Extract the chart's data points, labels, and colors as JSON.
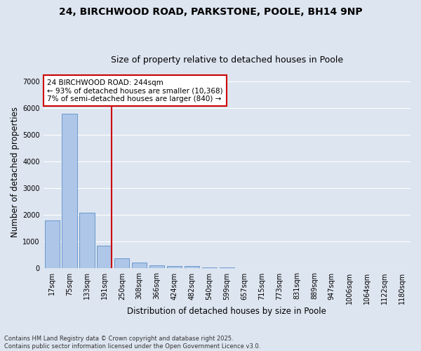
{
  "title_line1": "24, BIRCHWOOD ROAD, PARKSTONE, POOLE, BH14 9NP",
  "title_line2": "Size of property relative to detached houses in Poole",
  "xlabel": "Distribution of detached houses by size in Poole",
  "ylabel": "Number of detached properties",
  "categories": [
    "17sqm",
    "75sqm",
    "133sqm",
    "191sqm",
    "250sqm",
    "308sqm",
    "366sqm",
    "424sqm",
    "482sqm",
    "540sqm",
    "599sqm",
    "657sqm",
    "715sqm",
    "773sqm",
    "831sqm",
    "889sqm",
    "947sqm",
    "1006sqm",
    "1064sqm",
    "1122sqm",
    "1180sqm"
  ],
  "values": [
    1800,
    5800,
    2100,
    850,
    380,
    230,
    130,
    90,
    80,
    40,
    30,
    0,
    0,
    0,
    0,
    0,
    0,
    0,
    0,
    0,
    0
  ],
  "bar_color": "#aec6e8",
  "bar_edge_color": "#5b8fc9",
  "vline_x_index": 3,
  "vline_color": "#cc0000",
  "annotation_text": "24 BIRCHWOOD ROAD: 244sqm\n← 93% of detached houses are smaller (10,368)\n7% of semi-detached houses are larger (840) →",
  "annotation_box_color": "#cc0000",
  "ylim": [
    0,
    7200
  ],
  "yticks": [
    0,
    1000,
    2000,
    3000,
    4000,
    5000,
    6000,
    7000
  ],
  "background_color": "#dde5f0",
  "footer_text": "Contains HM Land Registry data © Crown copyright and database right 2025.\nContains public sector information licensed under the Open Government Licence v3.0.",
  "grid_color": "#ffffff",
  "title_fontsize": 10,
  "subtitle_fontsize": 9,
  "tick_fontsize": 7,
  "label_fontsize": 8.5,
  "annotation_fontsize": 7.5,
  "footer_fontsize": 6
}
